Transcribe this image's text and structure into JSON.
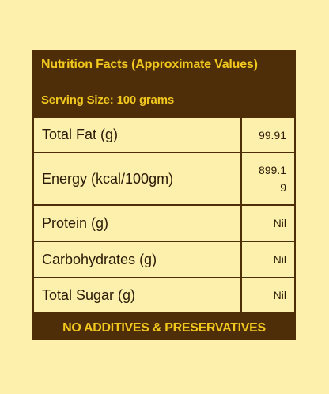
{
  "table": {
    "title": "Nutrition Facts (Approximate Values)",
    "serving_size": "Serving Size: 100 grams",
    "rows": [
      {
        "label": "Total Fat (g)",
        "value": "99.91"
      },
      {
        "label": "Energy (kcal/100gm)",
        "value": "899.19"
      },
      {
        "label": "Protein (g)",
        "value": "Nil"
      },
      {
        "label": "Carbohydrates (g)",
        "value": "Nil"
      },
      {
        "label": "Total Sugar (g)",
        "value": "Nil"
      }
    ],
    "footer": "NO ADDITIVES & PRESERVATIVES"
  },
  "colors": {
    "background": "#fdf0ac",
    "panel": "#4e2e08",
    "accent_text": "#f2c81f"
  }
}
